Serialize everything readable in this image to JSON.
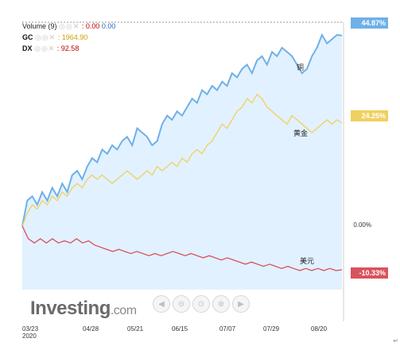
{
  "legend": {
    "volume": {
      "label": "Volume (9)",
      "value1": ": 0.00",
      "value2": "0.00"
    },
    "gc": {
      "label": "GC",
      "value": ": 1964.90"
    },
    "dx": {
      "label": "DX",
      "value": ": 92.58"
    }
  },
  "logo": {
    "text": "Investing",
    "suffix": ".com"
  },
  "nav_icons": [
    "arrow-left-icon",
    "zoom-out-icon",
    "zoom-reset-icon",
    "zoom-in-icon",
    "arrow-right-icon"
  ],
  "zero_label": "0.00%",
  "chart_data": {
    "type": "line",
    "title": "",
    "x_ticks": [
      "03/23\n2020",
      "04/28",
      "05/21",
      "06/15",
      "07/07",
      "07/29",
      "08/20"
    ],
    "ylabel": "%",
    "series": [
      {
        "name": "铜",
        "end_label": "44.87%",
        "color": "#6fb0e8",
        "values": [
          0,
          6,
          7,
          5,
          8,
          6,
          9,
          7,
          10,
          8,
          12,
          13,
          11,
          14,
          16,
          15,
          18,
          17,
          19,
          18,
          20,
          21,
          19,
          23,
          22,
          21,
          19,
          20,
          24,
          26,
          25,
          27,
          26,
          28,
          30,
          29,
          32,
          31,
          33,
          32,
          34,
          33,
          36,
          35,
          37,
          38,
          36,
          39,
          40,
          38,
          41,
          40,
          42,
          41,
          40,
          38,
          36,
          37,
          40,
          42,
          45,
          43,
          44,
          45,
          44.87
        ]
      },
      {
        "name": "黄金",
        "end_label": "24.25%",
        "color": "#f0d060",
        "values": [
          0,
          3,
          5,
          4,
          6,
          5,
          7,
          6,
          8,
          7,
          9,
          10,
          9,
          11,
          12,
          11,
          12,
          11,
          10,
          11,
          12,
          13,
          12,
          11,
          12,
          13,
          12,
          14,
          13,
          14,
          15,
          14,
          16,
          15,
          17,
          18,
          17,
          19,
          20,
          22,
          24,
          23,
          25,
          27,
          28,
          30,
          29,
          31,
          30,
          28,
          27,
          26,
          25,
          24,
          26,
          25,
          24,
          23,
          22,
          23,
          24,
          25,
          24,
          25,
          24.25
        ]
      },
      {
        "name": "美元",
        "end_label": "-10.33%",
        "color": "#d9535d",
        "values": [
          0,
          -3,
          -4,
          -3,
          -4,
          -3,
          -4,
          -3.5,
          -4,
          -3,
          -4,
          -3.5,
          -4.5,
          -5,
          -5.5,
          -6,
          -5.5,
          -6,
          -6.5,
          -6,
          -6.5,
          -7,
          -6.5,
          -7,
          -6.5,
          -6,
          -6.5,
          -7,
          -6.5,
          -7,
          -7.5,
          -7,
          -7.5,
          -8,
          -7.5,
          -8,
          -8.5,
          -9,
          -8.5,
          -9,
          -9.5,
          -9,
          -9.5,
          -10,
          -9.5,
          -10,
          -10.5,
          -10,
          -10.5,
          -10,
          -10.5,
          -10,
          -10.5,
          -10.33
        ]
      }
    ],
    "ylim": [
      -15,
      48
    ],
    "grid": false,
    "area_fill_series": "铜"
  }
}
